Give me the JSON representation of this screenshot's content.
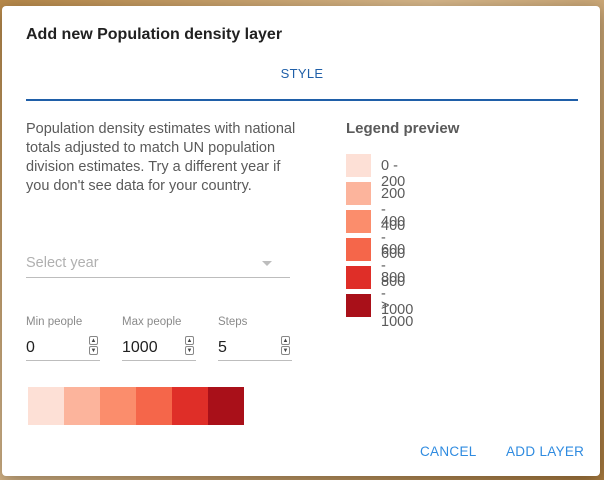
{
  "dialog": {
    "title": "Add new Population density layer",
    "tab_style": "STYLE",
    "description": "Population density estimates with national totals adjusted to match UN population division estimates. Try a different year if you don't see data for your country.",
    "select_year_placeholder": "Select year",
    "fields": {
      "min": {
        "label": "Min people",
        "value": "0"
      },
      "max": {
        "label": "Max people",
        "value": "1000"
      },
      "steps": {
        "label": "Steps",
        "value": "5"
      }
    },
    "color_ramp": [
      "#fde0d6",
      "#fcb49c",
      "#fb8d6c",
      "#f5664a",
      "#df2e28",
      "#a91019"
    ],
    "legend": {
      "title": "Legend preview",
      "items": [
        {
          "label": "0 - 200",
          "color": "#fde0d6"
        },
        {
          "label": "200 - 400",
          "color": "#fcb49c"
        },
        {
          "label": "400 - 600",
          "color": "#fb8d6c"
        },
        {
          "label": "600 - 800",
          "color": "#f5664a"
        },
        {
          "label": "800 - 1000",
          "color": "#df2e28"
        },
        {
          "label": "> 1000",
          "color": "#a91019"
        }
      ]
    },
    "buttons": {
      "cancel": "CANCEL",
      "add": "ADD LAYER"
    },
    "accent_color": "#2f8be0"
  }
}
